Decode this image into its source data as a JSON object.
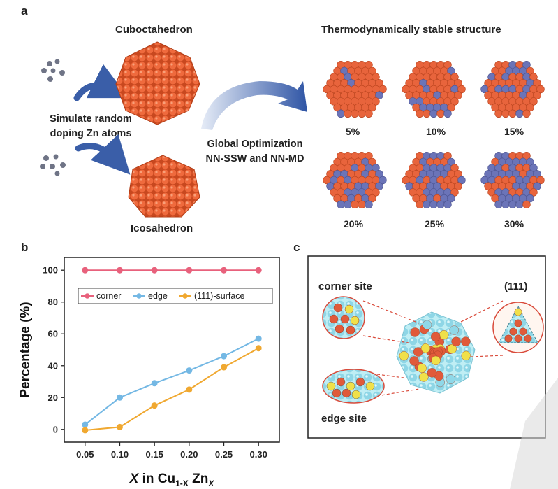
{
  "panel_a": {
    "letter": "a",
    "cubo_title": "Cuboctahedron",
    "icosa_title": "Icosahedron",
    "simulate_line1": "Simulate random",
    "simulate_line2": "doping Zn atoms",
    "global_line1": "Global Optimization",
    "global_line2": "NN-SSW and NN-MD",
    "stable_title": "Thermodynamically stable structure",
    "percentages": [
      "5%",
      "10%",
      "15%",
      "20%",
      "25%",
      "30%"
    ],
    "colors": {
      "cu": "#e8643c",
      "zn": "#6b74b8",
      "arrow": "#3a5ea8"
    }
  },
  "panel_b": {
    "letter": "b"
  },
  "panel_c": {
    "letter": "c",
    "corner_label": "corner site",
    "edge_label": "edge site",
    "facet_label": "(111)",
    "colors": {
      "cu": "#e05a3a",
      "zn": "#f0e04a",
      "sub": "#8fd8e8"
    }
  },
  "chart_data": {
    "type": "line",
    "x": [
      0.05,
      0.1,
      0.15,
      0.2,
      0.25,
      0.3
    ],
    "x_ticks": [
      "0.05",
      "0.10",
      "0.15",
      "0.20",
      "0.25",
      "0.30"
    ],
    "y_ticks": [
      "0",
      "20",
      "40",
      "60",
      "80",
      "100"
    ],
    "xlim": [
      0.02,
      0.33
    ],
    "ylim": [
      -8,
      108
    ],
    "ylabel": "Percentage (%)",
    "xlabel_parts": {
      "x": "X",
      "mid": " in Cu",
      "sub1": "1-X",
      "zn": " Zn",
      "sub2": "X"
    },
    "legend_position": "top",
    "series": [
      {
        "name": "corner",
        "color": "#e8617c",
        "values": [
          100,
          100,
          100,
          100,
          100,
          100
        ]
      },
      {
        "name": "edge",
        "color": "#74b8e4",
        "values": [
          3,
          20,
          29,
          37,
          46,
          57
        ]
      },
      {
        "name": "(111)-surface",
        "color": "#f0a830",
        "values": [
          -0.5,
          1.5,
          15,
          25,
          39,
          51
        ]
      }
    ]
  }
}
